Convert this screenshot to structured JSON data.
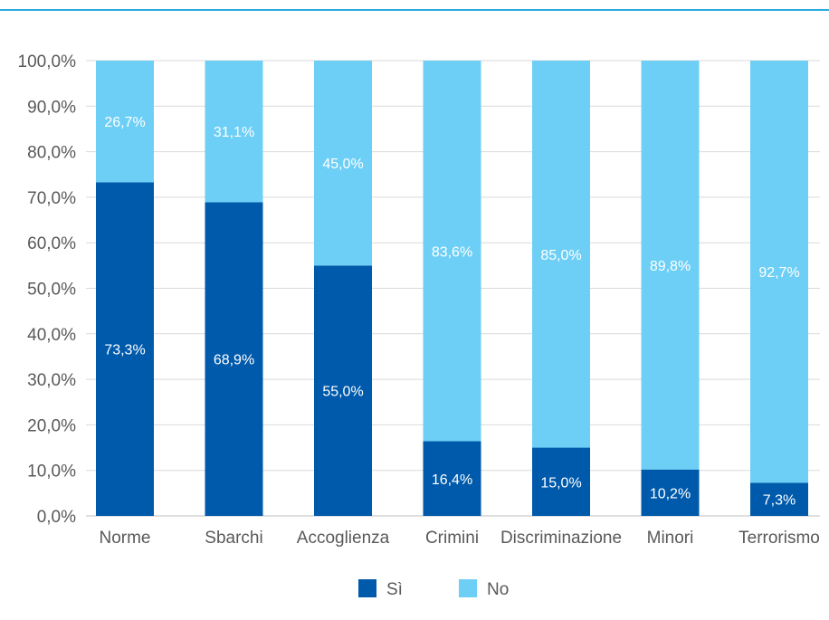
{
  "colors": {
    "si": "#005aab",
    "no": "#6dcff6",
    "rule": "#29abe2",
    "grid": "#d9d9d9",
    "axis": "#bfbfbf"
  },
  "chart_data": {
    "type": "bar",
    "stacked": true,
    "categories": [
      "Norme",
      "Sbarchi",
      "Accoglienza",
      "Crimini",
      "Discriminazione",
      "Minori",
      "Terrorismo"
    ],
    "series": [
      {
        "name": "Sì",
        "values": [
          73.3,
          68.9,
          55.0,
          16.4,
          15.0,
          10.2,
          7.3
        ],
        "labels": [
          "73,3%",
          "68,9%",
          "55,0%",
          "16,4%",
          "15,0%",
          "10,2%",
          "7,3%"
        ]
      },
      {
        "name": "No",
        "values": [
          26.7,
          31.1,
          45.0,
          83.6,
          85.0,
          89.8,
          92.7
        ],
        "labels": [
          "26,7%",
          "31,1%",
          "45,0%",
          "83,6%",
          "85,0%",
          "89,8%",
          "92,7%"
        ]
      }
    ],
    "yticks": [
      "0,0%",
      "10,0%",
      "20,0%",
      "30,0%",
      "40,0%",
      "50,0%",
      "60,0%",
      "70,0%",
      "80,0%",
      "90,0%",
      "100,0%"
    ],
    "ylim": [
      0,
      100
    ],
    "grid": true,
    "legend": "bottom"
  }
}
